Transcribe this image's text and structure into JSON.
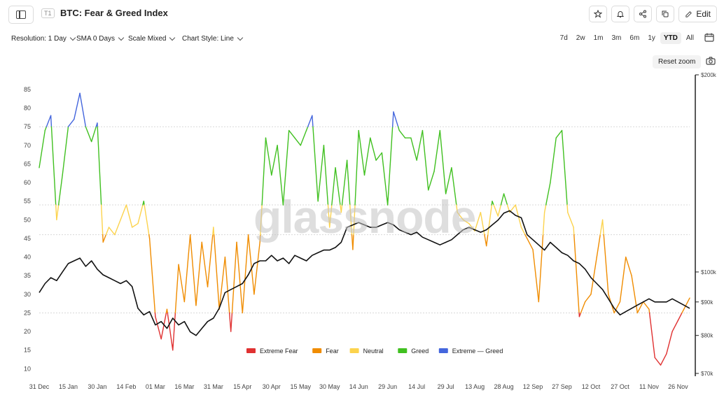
{
  "header": {
    "tier_badge": "T1",
    "title": "BTC: Fear & Greed Index",
    "edit_label": "Edit",
    "icons": [
      "sidebar-toggle-icon",
      "star-icon",
      "bell-icon",
      "share-icon",
      "copy-icon",
      "pencil-icon"
    ]
  },
  "controls": {
    "resolution": "Resolution: 1 Day",
    "sma": "SMA 0 Days",
    "scale": "Scale Mixed",
    "chart_style": "Chart Style: Line",
    "ranges": [
      "7d",
      "2w",
      "1m",
      "3m",
      "6m",
      "1y",
      "YTD",
      "All"
    ],
    "active_range": "YTD",
    "reset_zoom": "Reset zoom"
  },
  "watermark": "glassnode",
  "colors": {
    "extreme_fear": "#e03131",
    "fear": "#f08c00",
    "neutral": "#fcd34d",
    "greed": "#40c020",
    "extreme_greed": "#4466dd",
    "price": "#111111"
  },
  "chart_data": {
    "type": "line",
    "title": "BTC: Fear & Greed Index",
    "x_ticks": [
      "31 Dec",
      "15 Jan",
      "30 Jan",
      "14 Feb",
      "01 Mar",
      "16 Mar",
      "31 Mar",
      "15 Apr",
      "30 Apr",
      "15 May",
      "30 May",
      "14 Jun",
      "29 Jun",
      "14 Jul",
      "29 Jul",
      "13 Aug",
      "28 Aug",
      "12 Sep",
      "27 Sep",
      "12 Oct",
      "27 Oct",
      "11 Nov",
      "26 Nov"
    ],
    "y_left_ticks": [
      10,
      15,
      20,
      25,
      30,
      35,
      40,
      45,
      50,
      55,
      60,
      65,
      70,
      75,
      80,
      85
    ],
    "y_left_range": [
      8,
      88
    ],
    "y_right_ticks": [
      "$70k",
      "$80k",
      "$90k",
      "$100k",
      "$200k"
    ],
    "y_right_scale": "log",
    "reference_lines": [
      75,
      54,
      46,
      25
    ],
    "legend": [
      "Extreme Fear",
      "Fear",
      "Neutral",
      "Greed",
      "Extreme — Greed"
    ],
    "legend_placement": "bottom-center",
    "fear_greed_series": {
      "name": "Fear & Greed Index",
      "x_day_index": [
        0,
        3,
        6,
        9,
        12,
        15,
        18,
        21,
        24,
        27,
        30,
        33,
        36,
        39,
        42,
        45,
        48,
        51,
        54,
        57,
        60,
        63,
        66,
        69,
        72,
        75,
        78,
        81,
        84,
        87,
        90,
        93,
        96,
        99,
        102,
        105,
        108,
        111,
        114,
        117,
        120,
        123,
        126,
        129,
        132,
        135,
        138,
        141,
        144,
        147,
        150,
        153,
        156,
        159,
        162,
        165,
        168,
        171,
        174,
        177,
        180,
        183,
        186,
        189,
        192,
        195,
        198,
        201,
        204,
        207,
        210,
        213,
        216,
        219,
        222,
        225,
        228,
        231,
        234,
        237,
        240,
        243,
        246,
        249,
        252,
        255,
        258,
        261,
        264,
        267,
        270,
        273,
        276,
        279,
        282,
        285,
        288,
        291,
        294,
        297,
        300,
        303,
        306,
        309,
        312,
        315,
        318,
        321,
        324,
        327,
        330,
        333,
        336
      ],
      "values": [
        64,
        74,
        78,
        50,
        62,
        75,
        77,
        84,
        75,
        71,
        76,
        44,
        48,
        46,
        50,
        54,
        48,
        49,
        55,
        45,
        24,
        18,
        26,
        15,
        38,
        28,
        46,
        27,
        44,
        32,
        48,
        26,
        40,
        20,
        44,
        25,
        46,
        30,
        44,
        72,
        62,
        70,
        54,
        74,
        72,
        70,
        74,
        78,
        55,
        70,
        48,
        64,
        52,
        66,
        42,
        74,
        62,
        72,
        66,
        68,
        54,
        79,
        74,
        72,
        72,
        66,
        74,
        58,
        63,
        74,
        57,
        64,
        52,
        50,
        49,
        47,
        52,
        43,
        55,
        51,
        57,
        52,
        54,
        48,
        45,
        42,
        28,
        52,
        60,
        72,
        74,
        52,
        48,
        24,
        28,
        30,
        40,
        50,
        30,
        25,
        28,
        40,
        35,
        25,
        28,
        26,
        13,
        11,
        14,
        20,
        23,
        26,
        29
      ],
      "bands": {
        "extreme_fear": [
          0,
          25
        ],
        "fear": [
          25,
          46
        ],
        "neutral": [
          46,
          54
        ],
        "greed": [
          54,
          75
        ],
        "extreme_greed": [
          75,
          100
        ]
      }
    },
    "price_series": {
      "name": "BTC Price",
      "values": [
        93000,
        96000,
        98000,
        97000,
        100000,
        103000,
        104000,
        105000,
        102000,
        104000,
        101000,
        99000,
        98000,
        97000,
        96000,
        97000,
        95000,
        88000,
        86000,
        87000,
        83000,
        84000,
        82000,
        85000,
        83000,
        84000,
        81000,
        80000,
        82000,
        84000,
        85000,
        88000,
        93000,
        94000,
        95000,
        96000,
        99000,
        103000,
        104000,
        104000,
        106000,
        104000,
        105000,
        103000,
        106000,
        105000,
        104000,
        106000,
        107000,
        108000,
        108000,
        109000,
        111000,
        117000,
        118000,
        119000,
        118000,
        117000,
        117000,
        118000,
        119000,
        118000,
        116000,
        115000,
        114000,
        115000,
        113000,
        112000,
        111000,
        110000,
        111000,
        112000,
        114000,
        116000,
        117000,
        116000,
        115000,
        116000,
        118000,
        120000,
        123000,
        124000,
        122000,
        121000,
        114000,
        112000,
        110000,
        108000,
        111000,
        109000,
        107000,
        106000,
        104000,
        103000,
        101000,
        98000,
        96000,
        94000,
        91000,
        88000,
        86000,
        87000,
        88000,
        89000,
        90000,
        91000,
        90000,
        90000,
        90000,
        91000,
        90000,
        89000,
        88000
      ]
    }
  }
}
